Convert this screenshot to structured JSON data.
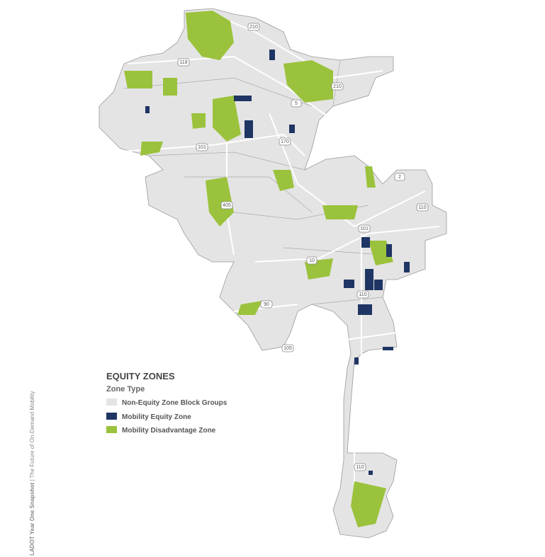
{
  "side_text": {
    "bold": "LADOT Year One Snapshot",
    "rest": " | The Future of On-Demand Mobility"
  },
  "legend": {
    "title": "EQUITY ZONES",
    "subtitle": "Zone Type",
    "items": [
      {
        "label": "Non-Equity Zone Block Groups",
        "color": "#e4e4e4"
      },
      {
        "label": "Mobility Equity Zone",
        "color": "#1f3563"
      },
      {
        "label": "Mobility Disadvantage Zone",
        "color": "#9bc23c"
      }
    ]
  },
  "highway_shields": [
    "210",
    "118",
    "210",
    "5",
    "170",
    "101",
    "405",
    "2",
    "110",
    "101",
    "10",
    "110",
    "90",
    "105",
    "110"
  ]
}
